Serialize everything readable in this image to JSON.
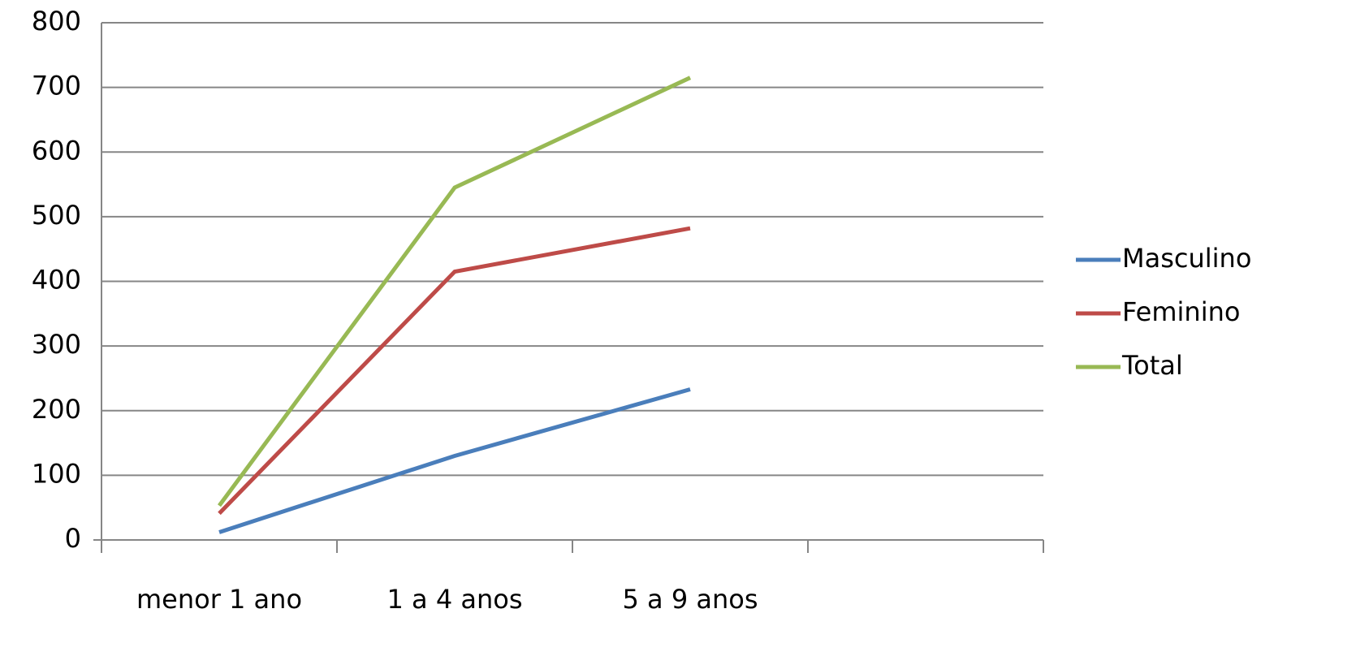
{
  "chart_data": {
    "type": "line",
    "categories": [
      "menor 1 ano",
      "1 a 4 anos",
      "5 a 9 anos",
      null
    ],
    "series": [
      {
        "name": "Masculino",
        "color": "#4a7ebb",
        "values": [
          12,
          130,
          233,
          null
        ]
      },
      {
        "name": "Feminino",
        "color": "#be4b48",
        "values": [
          41,
          415,
          482,
          null
        ]
      },
      {
        "name": "Total",
        "color": "#98b954",
        "values": [
          53,
          545,
          715,
          null
        ]
      }
    ],
    "ylim": [
      0,
      800
    ],
    "yticks": [
      0,
      100,
      200,
      300,
      400,
      500,
      600,
      700,
      800
    ],
    "grid": true,
    "legend": "right"
  }
}
